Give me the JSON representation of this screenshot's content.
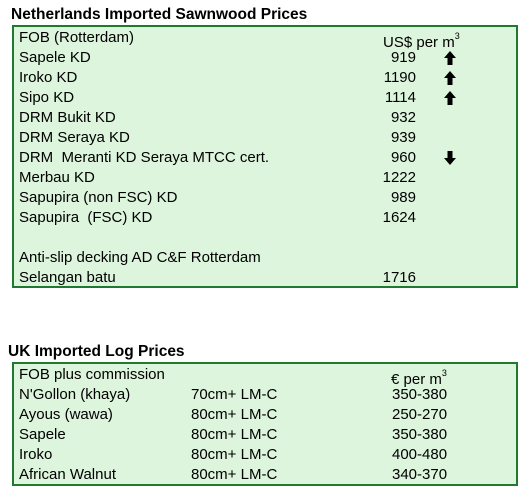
{
  "netherlands": {
    "title": "Netherlands Imported Sawnwood Prices",
    "header": {
      "label": "FOB (Rotterdam)",
      "unit": "US$ per m",
      "unit_sup": "3"
    },
    "rows": [
      {
        "name": "Sapele KD",
        "price": "919",
        "trend": "up"
      },
      {
        "name": "Iroko KD",
        "price": "1190",
        "trend": "up"
      },
      {
        "name": "Sipo KD",
        "price": "1114",
        "trend": "up"
      },
      {
        "name": "DRM Bukit KD",
        "price": "932",
        "trend": ""
      },
      {
        "name": "DRM Seraya KD",
        "price": "939",
        "trend": ""
      },
      {
        "name": "DRM  Meranti KD Seraya MTCC cert.",
        "price": "960",
        "trend": "down"
      },
      {
        "name": "Merbau KD",
        "price": "1222",
        "trend": ""
      },
      {
        "name": "Sapupira (non FSC) KD",
        "price": "989",
        "trend": ""
      },
      {
        "name": "Sapupira  (FSC) KD",
        "price": "1624",
        "trend": ""
      }
    ],
    "decking": {
      "heading": "Anti-slip decking AD C&F Rotterdam",
      "name": "Selangan batu",
      "price": "1716"
    },
    "icons": {
      "up": "up-arrow-icon",
      "down": "down-arrow-icon"
    }
  },
  "uk": {
    "title": "UK Imported Log Prices",
    "header": {
      "label": "FOB plus commission",
      "unit": "€ per m",
      "unit_sup": "3"
    },
    "rows": [
      {
        "name": "N'Gollon (khaya)",
        "grade": "70cm+ LM-C",
        "price": "350-380"
      },
      {
        "name": "Ayous (wawa)",
        "grade": "80cm+ LM-C",
        "price": "250-270"
      },
      {
        "name": "Sapele",
        "grade": "80cm+ LM-C",
        "price": "350-380"
      },
      {
        "name": "Iroko",
        "grade": "80cm+ LM-C",
        "price": "400-480"
      },
      {
        "name": "African Walnut",
        "grade": "80cm+ LM-C",
        "price": "340-370"
      }
    ]
  },
  "colors": {
    "box_fill": "#ddf4dd",
    "box_border": "#1f7a2f"
  }
}
